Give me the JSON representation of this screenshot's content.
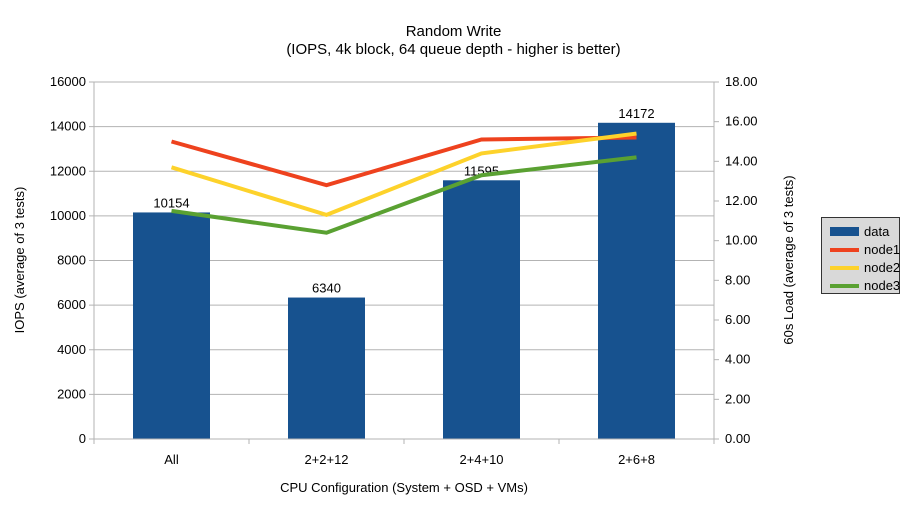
{
  "chart_data": {
    "type": "bar",
    "title": "Random Write",
    "subtitle": "(IOPS, 4k block, 64 queue depth - higher is better)",
    "categories": [
      "All",
      "2+2+12",
      "2+4+10",
      "2+6+8"
    ],
    "series": [
      {
        "name": "data",
        "type": "bar",
        "axis": "left",
        "color": "#17528f",
        "values": [
          10154,
          6340,
          11595,
          14172
        ],
        "data_labels": [
          "10154",
          "6340",
          "11595",
          "14172"
        ]
      },
      {
        "name": "node1",
        "type": "line",
        "axis": "right",
        "color": "#ee421e",
        "values": [
          15.0,
          12.8,
          15.1,
          15.2
        ]
      },
      {
        "name": "node2",
        "type": "line",
        "axis": "right",
        "color": "#fdd22b",
        "values": [
          13.7,
          11.3,
          14.4,
          15.4
        ]
      },
      {
        "name": "node3",
        "type": "line",
        "axis": "right",
        "color": "#5aa132",
        "values": [
          11.5,
          10.4,
          13.3,
          14.2
        ]
      }
    ],
    "xlabel": "CPU Configuration (System + OSD + VMs)",
    "ylabel_left": "IOPS (average of 3 tests)",
    "ylabel_right": "60s Load (average of 3 tests)",
    "ylim_left": [
      0,
      16000
    ],
    "ytick_step_left": 2000,
    "ylim_right": [
      0,
      18
    ],
    "ytick_step_right": 2,
    "ytick_labels_left": [
      "0",
      "2000",
      "4000",
      "6000",
      "8000",
      "10000",
      "12000",
      "14000",
      "16000"
    ],
    "ytick_labels_right": [
      "0.00",
      "2.00",
      "4.00",
      "6.00",
      "8.00",
      "10.00",
      "12.00",
      "14.00",
      "16.00",
      "18.00"
    ],
    "grid": "horizontal",
    "legend_position": "right",
    "legend_labels": [
      "data",
      "node1",
      "node2",
      "node3"
    ],
    "colors": {
      "grid": "#b3b3b3",
      "axis": "#b3b3b3",
      "text": "#000000",
      "legend_bg": "#d9d9d9",
      "legend_border": "#333333",
      "background": "#ffffff"
    }
  }
}
